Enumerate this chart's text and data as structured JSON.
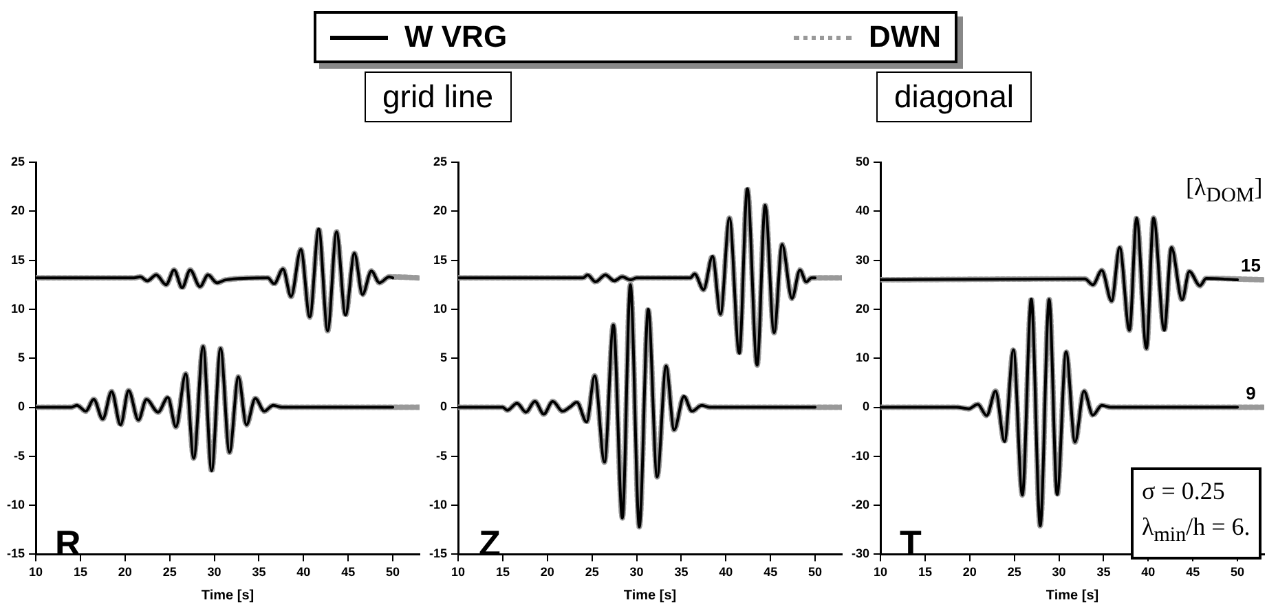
{
  "chart_data": [
    {
      "type": "line",
      "legend": "top",
      "xlabel": "Time [s]",
      "xlim": [
        10,
        53
      ],
      "xticks": [
        10,
        15,
        20,
        25,
        30,
        35,
        40,
        45,
        50
      ],
      "ylim": [
        -15,
        25
      ],
      "yticks": [
        -15,
        -10,
        -5,
        0,
        5,
        10,
        15,
        20,
        25
      ],
      "grid": false,
      "marker": "none",
      "annotations": [
        "grid line",
        "R"
      ],
      "series": [
        {
          "name": "W VRG",
          "color": "#000000",
          "line_style": "solid",
          "x": [
            10,
            21,
            21.7,
            22.5,
            23.5,
            24.6,
            25.5,
            26.4,
            27.3,
            28.4,
            29.3,
            30.3,
            31.3,
            36,
            36.7,
            37.7,
            38.6,
            39.7,
            40.7,
            41.7,
            42.7,
            43.7,
            44.7,
            45.7,
            46.6,
            47.6,
            48.5,
            49.6,
            50
          ],
          "values": [
            13.2,
            13.2,
            13.3,
            12.9,
            13.5,
            12.5,
            14,
            12.2,
            14,
            12.3,
            13.5,
            12.7,
            13,
            13.2,
            12.6,
            14.1,
            11.3,
            16.1,
            9.2,
            18.2,
            7.8,
            17.9,
            9.4,
            15.7,
            11.5,
            13.9,
            12.7,
            13.3,
            13.2
          ]
        },
        {
          "color": "#000000",
          "line_style": "solid",
          "x": [
            10,
            14,
            14.6,
            15.6,
            16.5,
            17.5,
            18.5,
            19.5,
            20.4,
            21.5,
            22.4,
            23.7,
            24.8,
            25.7,
            26.8,
            27.7,
            28.75,
            29.7,
            30.7,
            31.7,
            32.7,
            33.6,
            34.6,
            35.6,
            36.6,
            37.6,
            50
          ],
          "values": [
            0,
            0,
            0.2,
            -0.4,
            0.8,
            -1.2,
            1.6,
            -1.8,
            1.7,
            -1.3,
            0.8,
            -0.5,
            1,
            -2,
            3.4,
            -5.2,
            6.2,
            -6.5,
            6,
            -4.6,
            3.1,
            -1.8,
            0.9,
            -0.4,
            0.2,
            0,
            0
          ]
        },
        {
          "name": "DWN",
          "color": "#999999",
          "line_style": "dotted",
          "x": [
            10,
            21,
            21.7,
            22.5,
            23.5,
            24.6,
            25.5,
            26.4,
            27.3,
            28.4,
            29.3,
            30.3,
            31.3,
            36,
            36.7,
            37.7,
            38.6,
            39.7,
            40.7,
            41.7,
            42.7,
            43.7,
            44.7,
            45.7,
            46.6,
            47.6,
            48.5,
            49.6,
            53
          ],
          "values": [
            13.2,
            13.2,
            13.3,
            12.9,
            13.5,
            12.5,
            14,
            12.2,
            14,
            12.3,
            13.5,
            12.7,
            13,
            13.2,
            12.6,
            14.1,
            11.3,
            16.1,
            9.2,
            18.2,
            7.8,
            17.9,
            9.4,
            15.7,
            11.5,
            13.9,
            12.7,
            13.3,
            13.2
          ]
        },
        {
          "color": "#999999",
          "line_style": "dotted",
          "x": [
            10,
            14,
            14.6,
            15.6,
            16.5,
            17.5,
            18.5,
            19.5,
            20.4,
            21.5,
            22.4,
            23.7,
            24.8,
            25.7,
            26.8,
            27.7,
            28.75,
            29.7,
            30.7,
            31.7,
            32.7,
            33.6,
            34.6,
            35.6,
            36.6,
            37.6,
            53
          ],
          "values": [
            0,
            0,
            0.2,
            -0.4,
            0.8,
            -1.2,
            1.6,
            -1.8,
            1.7,
            -1.3,
            0.8,
            -0.5,
            1,
            -2,
            3.4,
            -5.2,
            6.2,
            -6.5,
            6,
            -4.6,
            3.1,
            -1.8,
            0.9,
            -0.4,
            0.2,
            0,
            0
          ]
        }
      ]
    },
    {
      "type": "line",
      "xlabel": "Time [s]",
      "xlim": [
        10,
        53
      ],
      "xticks": [
        10,
        15,
        20,
        25,
        30,
        35,
        40,
        45,
        50
      ],
      "ylim": [
        -15,
        25
      ],
      "yticks": [
        -15,
        -10,
        -5,
        0,
        5,
        10,
        15,
        20,
        25
      ],
      "grid": false,
      "marker": "none",
      "annotations": [
        "Z"
      ],
      "series": [
        {
          "color": "#000000",
          "line_style": "solid",
          "x": [
            10,
            24,
            24.5,
            25.4,
            26.5,
            27.5,
            28.4,
            29.3,
            30,
            36,
            36.5,
            37.5,
            38.5,
            39.4,
            40.4,
            41.5,
            42.4,
            43.5,
            44.4,
            45.4,
            46.3,
            47.4,
            48.3,
            49,
            49.6,
            50
          ],
          "values": [
            13.2,
            13.2,
            13.5,
            12.8,
            13.5,
            12.9,
            13.3,
            13,
            13.2,
            13.2,
            13.6,
            12,
            15.4,
            9.5,
            19.3,
            5.5,
            22.3,
            4.3,
            20.6,
            7.6,
            16.6,
            11.1,
            14,
            12.8,
            13.2,
            13.2
          ]
        },
        {
          "color": "#000000",
          "line_style": "solid",
          "x": [
            10,
            15,
            15.5,
            16.6,
            17.6,
            18.6,
            19.6,
            20.6,
            21.7,
            22.5,
            23.3,
            24.4,
            25.3,
            26.4,
            27.4,
            28.4,
            29.3,
            30.3,
            31.3,
            32.3,
            33.3,
            34.2,
            35.3,
            36.2,
            37.3,
            38.2,
            50
          ],
          "values": [
            0,
            0,
            -0.3,
            0.4,
            -0.5,
            0.6,
            -0.7,
            0.6,
            -0.4,
            0,
            0.5,
            -1.5,
            3.2,
            -5.6,
            8.4,
            -11.3,
            12.5,
            -12.2,
            10,
            -7.1,
            4.2,
            -2.3,
            1.1,
            -0.4,
            0.2,
            0,
            0
          ]
        },
        {
          "color": "#999999",
          "line_style": "dotted",
          "x": [
            10,
            24,
            24.5,
            25.4,
            26.5,
            27.5,
            28.4,
            29.3,
            30,
            36,
            36.5,
            37.5,
            38.5,
            39.4,
            40.4,
            41.5,
            42.4,
            43.5,
            44.4,
            45.4,
            46.3,
            47.4,
            48.3,
            49,
            49.6,
            53
          ],
          "values": [
            13.2,
            13.2,
            13.5,
            12.8,
            13.5,
            12.9,
            13.3,
            13,
            13.2,
            13.2,
            13.6,
            12,
            15.4,
            9.5,
            19.3,
            5.5,
            22.3,
            4.3,
            20.6,
            7.6,
            16.6,
            11.1,
            14,
            12.8,
            13.2,
            13.2
          ]
        },
        {
          "color": "#999999",
          "line_style": "dotted",
          "x": [
            10,
            15,
            15.5,
            16.6,
            17.6,
            18.6,
            19.6,
            20.6,
            21.7,
            22.5,
            23.3,
            24.4,
            25.3,
            26.4,
            27.4,
            28.4,
            29.3,
            30.3,
            31.3,
            32.3,
            33.3,
            34.2,
            35.3,
            36.2,
            37.3,
            38.2,
            53
          ],
          "values": [
            0,
            0,
            -0.3,
            0.4,
            -0.5,
            0.6,
            -0.7,
            0.6,
            -0.4,
            0,
            0.5,
            -1.5,
            3.2,
            -5.6,
            8.4,
            -11.3,
            12.5,
            -12.2,
            10,
            -7.1,
            4.2,
            -2.3,
            1.1,
            -0.4,
            0.2,
            0,
            0
          ]
        }
      ]
    },
    {
      "type": "line",
      "xlabel": "Time [s]",
      "xlim": [
        10,
        53
      ],
      "xticks": [
        10,
        15,
        20,
        25,
        30,
        35,
        40,
        45,
        50
      ],
      "ylim": [
        -30,
        50
      ],
      "yticks": [
        -30,
        -20,
        -10,
        0,
        10,
        20,
        30,
        40,
        50
      ],
      "grid": false,
      "marker": "none",
      "annotations": [
        "diagonal",
        "[λ$_{DOM}$]",
        {
          "text": "15",
          "x": 51.5,
          "y": 26
        },
        {
          "text": "9",
          "x": 51.5,
          "y": 0
        },
        "σ = 0.25",
        "λ$_{min}$/h = 6.",
        "T"
      ],
      "series": [
        {
          "color": "#000000",
          "line_style": "solid",
          "x": [
            10,
            32.9,
            33.8,
            34.8,
            35.9,
            36.8,
            37.9,
            38.7,
            39.8,
            40.6,
            41.8,
            42.6,
            43.8,
            44.6,
            45.8,
            46.5,
            50
          ],
          "values": [
            26,
            26.2,
            25,
            27.9,
            21.7,
            32.6,
            15.7,
            38.6,
            12,
            38.6,
            15.7,
            32.6,
            21.9,
            27.7,
            24.8,
            26.3,
            26
          ]
        },
        {
          "color": "#000000",
          "line_style": "solid",
          "x": [
            10,
            18.5,
            19.9,
            20.9,
            21.9,
            22.9,
            23.9,
            24.9,
            25.9,
            26.9,
            27.9,
            28.9,
            29.8,
            30.8,
            31.8,
            32.8,
            33.8,
            34.8,
            35.8,
            50
          ],
          "values": [
            0,
            0,
            -0.3,
            0.6,
            -1.7,
            3.3,
            -7,
            11.7,
            -17.9,
            22.1,
            -24.2,
            22,
            -17.8,
            11.3,
            -7.1,
            3.3,
            -1.6,
            0.4,
            0,
            0
          ]
        },
        {
          "color": "#999999",
          "line_style": "dotted",
          "x": [
            10,
            32.9,
            33.8,
            34.8,
            35.9,
            36.8,
            37.9,
            38.7,
            39.8,
            40.6,
            41.8,
            42.6,
            43.8,
            44.6,
            45.8,
            46.5,
            53
          ],
          "values": [
            26,
            26.2,
            25,
            27.9,
            21.7,
            32.6,
            15.7,
            38.6,
            12,
            38.6,
            15.7,
            32.6,
            21.9,
            27.7,
            24.8,
            26.3,
            26
          ]
        },
        {
          "color": "#999999",
          "line_style": "dotted",
          "x": [
            10,
            18.5,
            19.9,
            20.9,
            21.9,
            22.9,
            23.9,
            24.9,
            25.9,
            26.9,
            27.9,
            28.9,
            29.8,
            30.8,
            31.8,
            32.8,
            33.8,
            34.8,
            35.8,
            53
          ],
          "values": [
            0,
            0,
            -0.3,
            0.6,
            -1.7,
            3.3,
            -7,
            11.7,
            -17.9,
            22.1,
            -24.2,
            22,
            -17.8,
            11.3,
            -7.1,
            3.3,
            -1.6,
            0.4,
            0,
            0
          ]
        }
      ]
    }
  ]
}
